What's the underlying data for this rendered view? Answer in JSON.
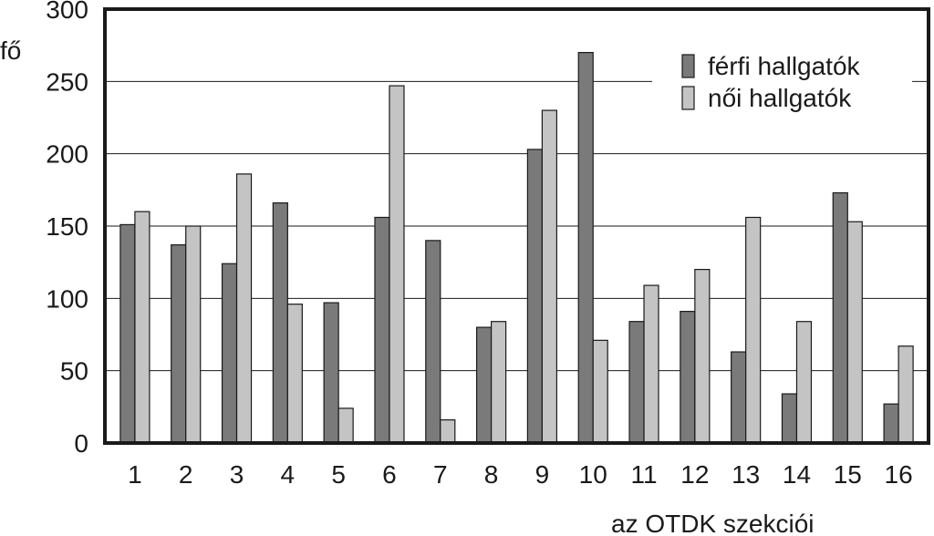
{
  "chart_data": {
    "type": "bar",
    "categories": [
      "1",
      "2",
      "3",
      "4",
      "5",
      "6",
      "7",
      "8",
      "9",
      "10",
      "11",
      "12",
      "13",
      "14",
      "15",
      "16"
    ],
    "series": [
      {
        "name": "férfi hallgatók",
        "color": "#7a7a7a",
        "values": [
          151,
          137,
          124,
          166,
          97,
          156,
          140,
          80,
          203,
          270,
          84,
          91,
          63,
          34,
          173,
          27
        ]
      },
      {
        "name": "női hallgatók",
        "color": "#c4c4c4",
        "values": [
          160,
          150,
          186,
          96,
          24,
          247,
          16,
          84,
          230,
          71,
          109,
          120,
          156,
          84,
          153,
          67
        ]
      }
    ],
    "ylabel": "fő",
    "xlabel": "az OTDK szekciói",
    "ylim": [
      0,
      300
    ],
    "yticks": [
      0,
      50,
      100,
      150,
      200,
      250,
      300
    ],
    "grid": true,
    "legend_position": "top-right"
  }
}
